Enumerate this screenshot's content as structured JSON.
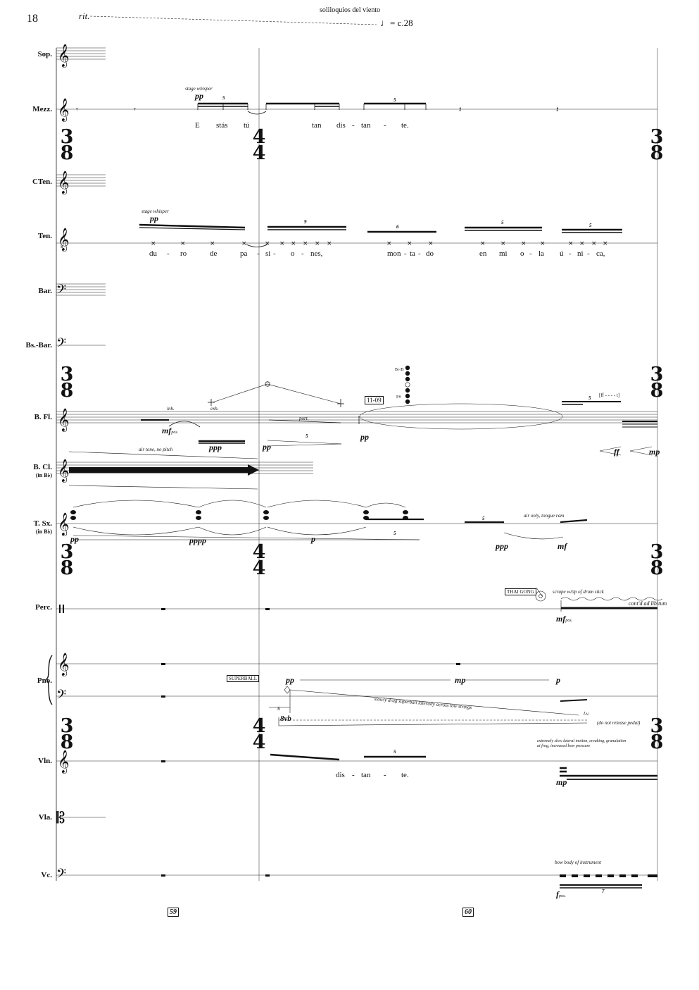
{
  "page": {
    "number": "18",
    "rit": "rit.",
    "section_title": "soliloquios del viento",
    "tempo": "= c.28"
  },
  "instruments": [
    {
      "id": "sop",
      "label": "Sop."
    },
    {
      "id": "mezz",
      "label": "Mezz."
    },
    {
      "id": "cten",
      "label": "CTen."
    },
    {
      "id": "ten",
      "label": "Ten."
    },
    {
      "id": "bar",
      "label": "Bar."
    },
    {
      "id": "bsbar",
      "label": "Bs.-Bar."
    },
    {
      "id": "bfl",
      "label": "B. Fl."
    },
    {
      "id": "bcl",
      "label": "B. Cl.",
      "sub": "(in B♭)"
    },
    {
      "id": "tsx",
      "label": "T. Sx.",
      "sub": "(in B♭)"
    },
    {
      "id": "perc",
      "label": "Perc."
    },
    {
      "id": "pno",
      "label": "Pno."
    },
    {
      "id": "vln",
      "label": "Vln."
    },
    {
      "id": "vla",
      "label": "Vla."
    },
    {
      "id": "vc",
      "label": "Vc."
    }
  ],
  "time_signatures": {
    "three_eight": {
      "top": "3",
      "bottom": "8"
    },
    "four_four": {
      "top": "4",
      "bottom": "4"
    }
  },
  "mezz": {
    "annotation": "stage whisper",
    "dynamic": "pp",
    "lyrics": [
      "E",
      "stás",
      "tú",
      "tan",
      "dis",
      "-",
      "tan",
      "-",
      "te."
    ],
    "tuplets": [
      "5",
      "5"
    ]
  },
  "ten": {
    "annotation": "stage whisper",
    "dynamic": "pp",
    "lyrics": [
      "du",
      "-",
      "ro",
      "de",
      "pa",
      "-",
      "si",
      "-",
      "o",
      "-",
      "nes,",
      "mon",
      "-",
      "ta",
      "-",
      "do",
      "en",
      "mi",
      "o",
      "-",
      "la",
      "ú",
      "-",
      "ni",
      "-",
      "ca,"
    ],
    "tuplets": [
      "9",
      "6",
      "5",
      "5"
    ]
  },
  "bfl": {
    "inh": "inh.",
    "exh": "exh.",
    "mf_pos": "mf",
    "pos": "pos.",
    "ppp": "ppp",
    "pp1": "pp",
    "port": "port.",
    "tuplet": "5",
    "fingering_box": "11-09",
    "fingering_top": "B♭/B",
    "fingering_bottom": "F#",
    "pp2": "pp",
    "tuplet2": "5",
    "flt_label": "[ff - - - - t]",
    "ff": "ff",
    "mp": "mp"
  },
  "bcl": {
    "annotation": "air tone, no pitch"
  },
  "tsx": {
    "pp": "pp",
    "pppp": "pppp",
    "p": "p",
    "tuplet1": "5",
    "tuplet2": "5",
    "annotation": "air only, tongue ram",
    "ppp": "ppp",
    "mf": "mf"
  },
  "perc": {
    "label": "THAI GONG",
    "annotation": "scrape w/tip of drum stick",
    "contd": "cont'd ad libitum",
    "mf": "mf",
    "pos": "pos."
  },
  "pno": {
    "superball": "SUPERBALL",
    "pp": "pp",
    "mp": "mp",
    "p": "p",
    "annotation": "slowly drag superball laterally across low strings",
    "tuplet": "5",
    "octave": "8vb",
    "lv": "l.v.",
    "pedal_note": "(do not release pedal)"
  },
  "vln": {
    "lyrics": [
      "dis",
      "-",
      "tan",
      "-",
      "te."
    ],
    "tuplet": "5",
    "annotation_line1": "extremely slow lateral motion, creaking, granulation",
    "annotation_line2": "at frog, increased bow pressure",
    "mp": "mp"
  },
  "vc": {
    "annotation": "bow body of instrument",
    "f": "f",
    "pos": "pos.",
    "tuplet": "7"
  },
  "measures": [
    "59",
    "60"
  ]
}
